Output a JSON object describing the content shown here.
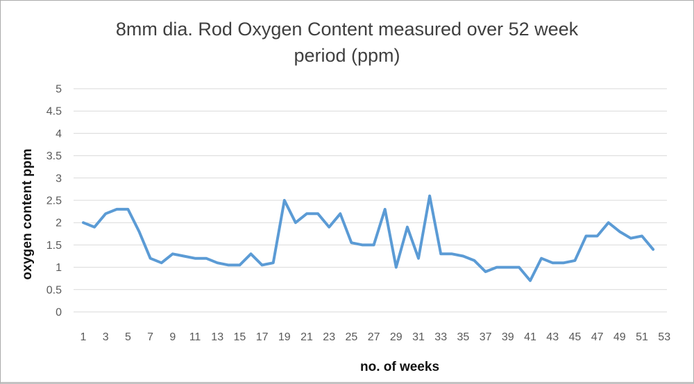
{
  "window": {
    "background_color": "#ffffff",
    "border_color": "#aaaaaa"
  },
  "chart_data": {
    "type": "line",
    "title": "8mm dia. Rod Oxygen Content measured over 52 week period (ppm)",
    "title_lines": [
      "8mm dia. Rod Oxygen Content measured over 52 week",
      "period (ppm)"
    ],
    "xlabel": "no. of weeks",
    "ylabel": "oxygen content ppm",
    "x": [
      1,
      2,
      3,
      4,
      5,
      6,
      7,
      8,
      9,
      10,
      11,
      12,
      13,
      14,
      15,
      16,
      17,
      18,
      19,
      20,
      21,
      22,
      23,
      24,
      25,
      26,
      27,
      28,
      29,
      30,
      31,
      32,
      33,
      34,
      35,
      36,
      37,
      38,
      39,
      40,
      41,
      42,
      43,
      44,
      45,
      46,
      47,
      48,
      49,
      50,
      51,
      52
    ],
    "values": [
      2.0,
      1.9,
      2.2,
      2.3,
      2.3,
      1.8,
      1.2,
      1.1,
      1.3,
      1.25,
      1.2,
      1.2,
      1.1,
      1.05,
      1.05,
      1.3,
      1.05,
      1.1,
      2.5,
      2.0,
      2.2,
      2.2,
      1.9,
      2.2,
      1.55,
      1.5,
      1.5,
      2.3,
      1.0,
      1.9,
      1.2,
      2.6,
      1.3,
      1.3,
      1.25,
      1.15,
      0.9,
      1.0,
      1.0,
      1.0,
      0.7,
      1.2,
      1.1,
      1.1,
      1.15,
      1.7,
      1.7,
      2.0,
      1.8,
      1.65,
      1.7,
      1.4
    ],
    "ylim": [
      0,
      5
    ],
    "yticks": [
      0,
      0.5,
      1,
      1.5,
      2,
      2.5,
      3,
      3.5,
      4,
      4.5,
      5
    ],
    "xticks": [
      1,
      3,
      5,
      7,
      9,
      11,
      13,
      15,
      17,
      19,
      21,
      23,
      25,
      27,
      29,
      31,
      33,
      35,
      37,
      39,
      41,
      43,
      45,
      47,
      49,
      51,
      53
    ],
    "grid": "horizontal-only",
    "legend": "none",
    "line_color": "#5B9BD5",
    "line_width": 4,
    "gridline_color": "#D9D9D9",
    "tick_label_color": "#595959",
    "title_color": "#3f3f3f",
    "axis_title_color": "#111111"
  }
}
